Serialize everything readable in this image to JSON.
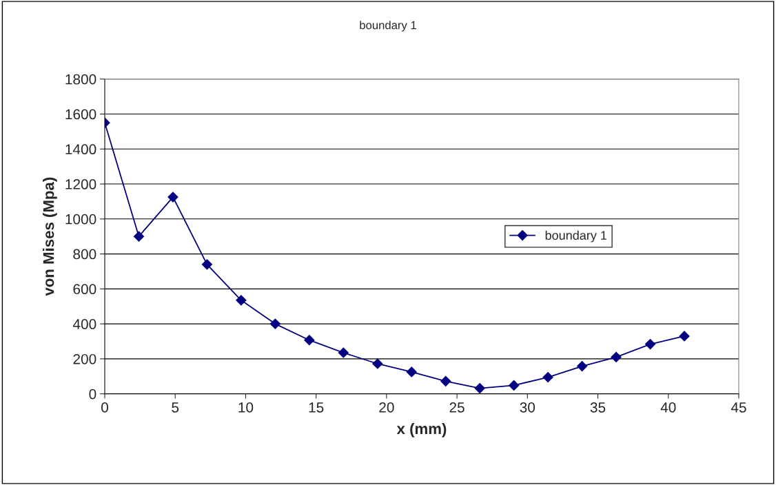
{
  "chart_data": {
    "type": "line",
    "title": "boundary 1",
    "xlabel": "x (mm)",
    "ylabel": "von Mises (Mpa)",
    "series": [
      {
        "name": "boundary 1",
        "color": "#000080",
        "x": [
          0,
          2.42,
          4.84,
          7.26,
          9.68,
          12.1,
          14.52,
          16.94,
          19.36,
          21.78,
          24.2,
          26.62,
          29.04,
          31.46,
          33.88,
          36.3,
          38.72,
          41.14
        ],
        "values": [
          1550,
          900,
          1125,
          740,
          535,
          400,
          307,
          235,
          172,
          125,
          72,
          32,
          48,
          95,
          158,
          210,
          284,
          330
        ]
      }
    ],
    "xlim": [
      0,
      45
    ],
    "xticks": [
      0,
      5,
      10,
      15,
      20,
      25,
      30,
      35,
      40,
      45
    ],
    "ylim": [
      0,
      1800
    ],
    "yticks": [
      0,
      200,
      400,
      600,
      800,
      1000,
      1200,
      1400,
      1600,
      1800
    ],
    "grid": "y",
    "legend": "right",
    "marker": "diamond",
    "line_style": "solid"
  }
}
